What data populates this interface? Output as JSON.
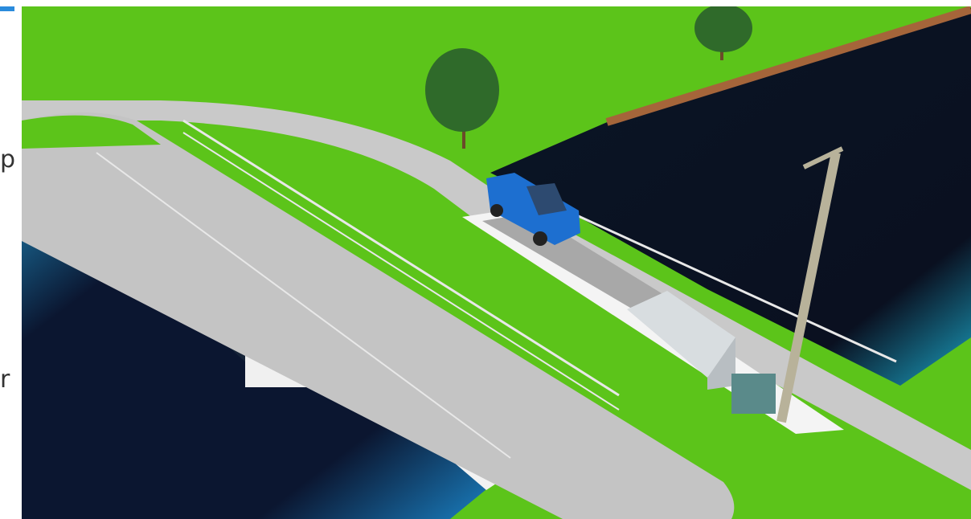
{
  "sidebar": {
    "fragments": [
      "p",
      "r"
    ]
  }
}
